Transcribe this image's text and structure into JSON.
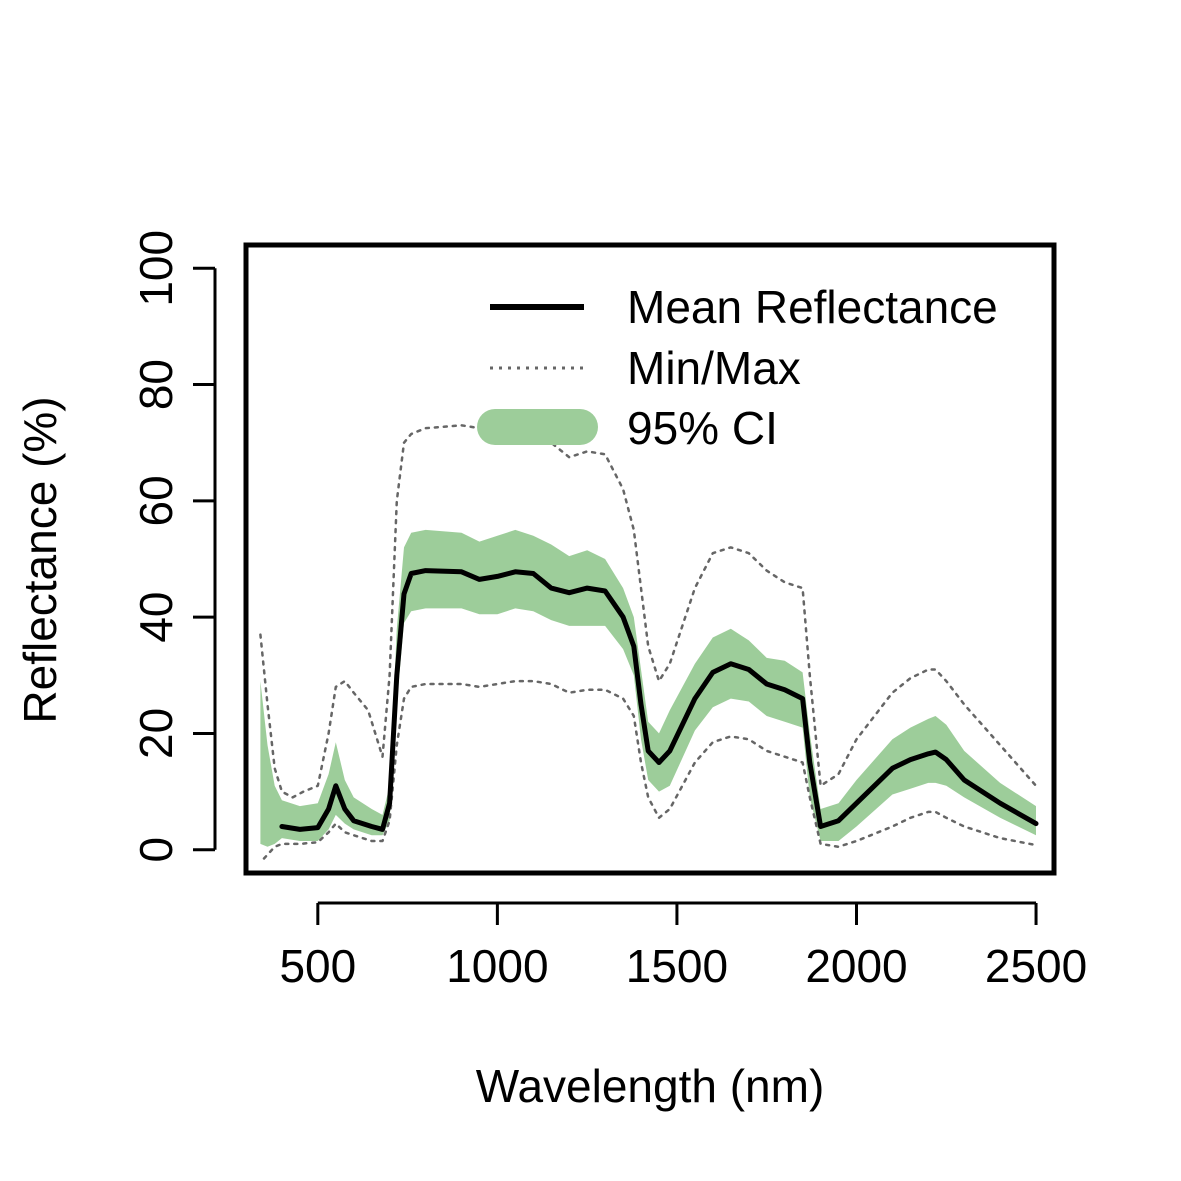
{
  "chart_data": {
    "type": "line",
    "title": "",
    "xlabel": "Wavelength (nm)",
    "ylabel": "Reflectance (%)",
    "xlim": [
      300,
      2550
    ],
    "ylim": [
      -4,
      104
    ],
    "x_ticks": [
      500,
      1000,
      1500,
      2000,
      2500
    ],
    "y_ticks": [
      0,
      20,
      40,
      60,
      80,
      100
    ],
    "grid": false,
    "legend_position": "top-right",
    "legend": {
      "mean_label": "Mean Reflectance",
      "minmax_label": "Min/Max",
      "ci_label": "95% CI"
    },
    "colors": {
      "mean": "#000000",
      "minmax": "#666666",
      "ci_fill": "#9dcd9a",
      "frame": "#000000"
    },
    "series": [
      {
        "name": "Mean Reflectance",
        "style": "solid",
        "x": [
          400,
          450,
          500,
          530,
          550,
          575,
          600,
          650,
          680,
          700,
          720,
          740,
          760,
          800,
          900,
          950,
          1000,
          1050,
          1100,
          1150,
          1200,
          1250,
          1300,
          1350,
          1380,
          1400,
          1420,
          1450,
          1480,
          1550,
          1600,
          1650,
          1700,
          1750,
          1800,
          1850,
          1870,
          1900,
          1950,
          2000,
          2100,
          2150,
          2200,
          2220,
          2250,
          2300,
          2400,
          2500
        ],
        "y": [
          4,
          3.5,
          3.8,
          7,
          11,
          7,
          5,
          4,
          3.5,
          8,
          30,
          44,
          47.5,
          48,
          47.8,
          46.5,
          47,
          47.8,
          47.5,
          45,
          44.2,
          45,
          44.5,
          40,
          35,
          25,
          17,
          15,
          17,
          26,
          30.5,
          32,
          31,
          28.5,
          27.5,
          26,
          15,
          4,
          5,
          8,
          14,
          15.5,
          16.5,
          16.8,
          15.5,
          12,
          8,
          4.5
        ]
      },
      {
        "name": "Min/Max",
        "style": "dotted",
        "x": [
          340,
          360,
          380,
          400,
          430,
          460,
          500,
          530,
          550,
          575,
          600,
          640,
          680,
          700,
          720,
          740,
          760,
          800,
          900,
          950,
          1000,
          1050,
          1100,
          1150,
          1200,
          1250,
          1300,
          1350,
          1380,
          1400,
          1420,
          1450,
          1480,
          1550,
          1600,
          1650,
          1700,
          1750,
          1800,
          1850,
          1870,
          1900,
          1950,
          2000,
          2100,
          2150,
          2200,
          2220,
          2250,
          2300,
          2400,
          2500
        ],
        "y": [
          37,
          25,
          14,
          10,
          9,
          10,
          11,
          20,
          28,
          29,
          27,
          24,
          16,
          30,
          60,
          70,
          71.5,
          72.5,
          73,
          72.5,
          72.5,
          73,
          73,
          70,
          67.5,
          68.5,
          68,
          62,
          55,
          45,
          35,
          29,
          32,
          45,
          51,
          52,
          51,
          48,
          46,
          45,
          30,
          11,
          13,
          19,
          27,
          29.5,
          31,
          31,
          29,
          25,
          18,
          11
        ]
      },
      {
        "name": "Min/Max",
        "style": "dotted",
        "x": [
          350,
          380,
          400,
          450,
          500,
          530,
          550,
          575,
          600,
          650,
          680,
          700,
          720,
          740,
          760,
          800,
          900,
          950,
          1000,
          1050,
          1100,
          1150,
          1200,
          1250,
          1300,
          1350,
          1380,
          1400,
          1420,
          1450,
          1480,
          1550,
          1600,
          1650,
          1700,
          1750,
          1800,
          1850,
          1870,
          1900,
          1950,
          2000,
          2100,
          2150,
          2200,
          2220,
          2250,
          2300,
          2400,
          2500
        ],
        "y": [
          -1.5,
          0.5,
          1,
          1,
          1.3,
          3,
          4.5,
          3,
          2.5,
          1.5,
          1.5,
          5,
          18,
          26,
          28,
          28.5,
          28.5,
          28,
          28.5,
          29,
          29,
          28.5,
          27,
          27.5,
          27.5,
          26,
          23,
          15,
          9,
          5.5,
          7,
          15,
          18.5,
          19.5,
          19,
          17,
          16,
          15,
          9,
          1,
          0.5,
          1.5,
          4,
          5.5,
          6.5,
          6.5,
          5.5,
          4,
          2,
          0.8
        ]
      }
    ],
    "ci_band": {
      "name": "95% CI",
      "x": [
        340,
        360,
        380,
        400,
        450,
        500,
        530,
        550,
        575,
        600,
        650,
        680,
        700,
        720,
        740,
        760,
        800,
        900,
        950,
        1000,
        1050,
        1100,
        1150,
        1200,
        1250,
        1300,
        1350,
        1380,
        1400,
        1420,
        1450,
        1480,
        1550,
        1600,
        1650,
        1700,
        1750,
        1800,
        1850,
        1870,
        1900,
        1950,
        2000,
        2100,
        2150,
        2200,
        2220,
        2250,
        2300,
        2400,
        2500
      ],
      "upper": [
        29,
        18,
        11,
        8.5,
        7.5,
        8,
        13,
        18.5,
        12,
        9,
        7,
        6,
        11,
        38,
        52,
        54.5,
        55,
        54.5,
        53,
        54,
        55,
        54,
        52.5,
        50.5,
        51.5,
        50,
        45,
        40,
        31,
        22,
        20,
        24,
        32,
        36.5,
        38,
        36,
        33,
        32.5,
        30.5,
        20,
        7,
        8,
        12,
        19,
        21,
        22.5,
        23,
        21.5,
        17,
        11.5,
        7.5
      ],
      "lower": [
        1,
        0.5,
        1,
        2,
        1.5,
        1.5,
        3.5,
        6,
        4.5,
        3.5,
        2.5,
        2.5,
        5,
        25,
        39,
        41,
        41.5,
        41.5,
        40.5,
        40.5,
        41.5,
        41,
        39.5,
        38.5,
        38.5,
        38.5,
        34.5,
        30,
        19,
        12,
        10,
        11,
        20.5,
        24.5,
        26,
        25.5,
        23,
        22,
        21,
        9,
        1.5,
        1.5,
        4,
        9.5,
        10.5,
        11.5,
        11.5,
        11,
        9,
        5.5,
        2.5
      ]
    }
  }
}
